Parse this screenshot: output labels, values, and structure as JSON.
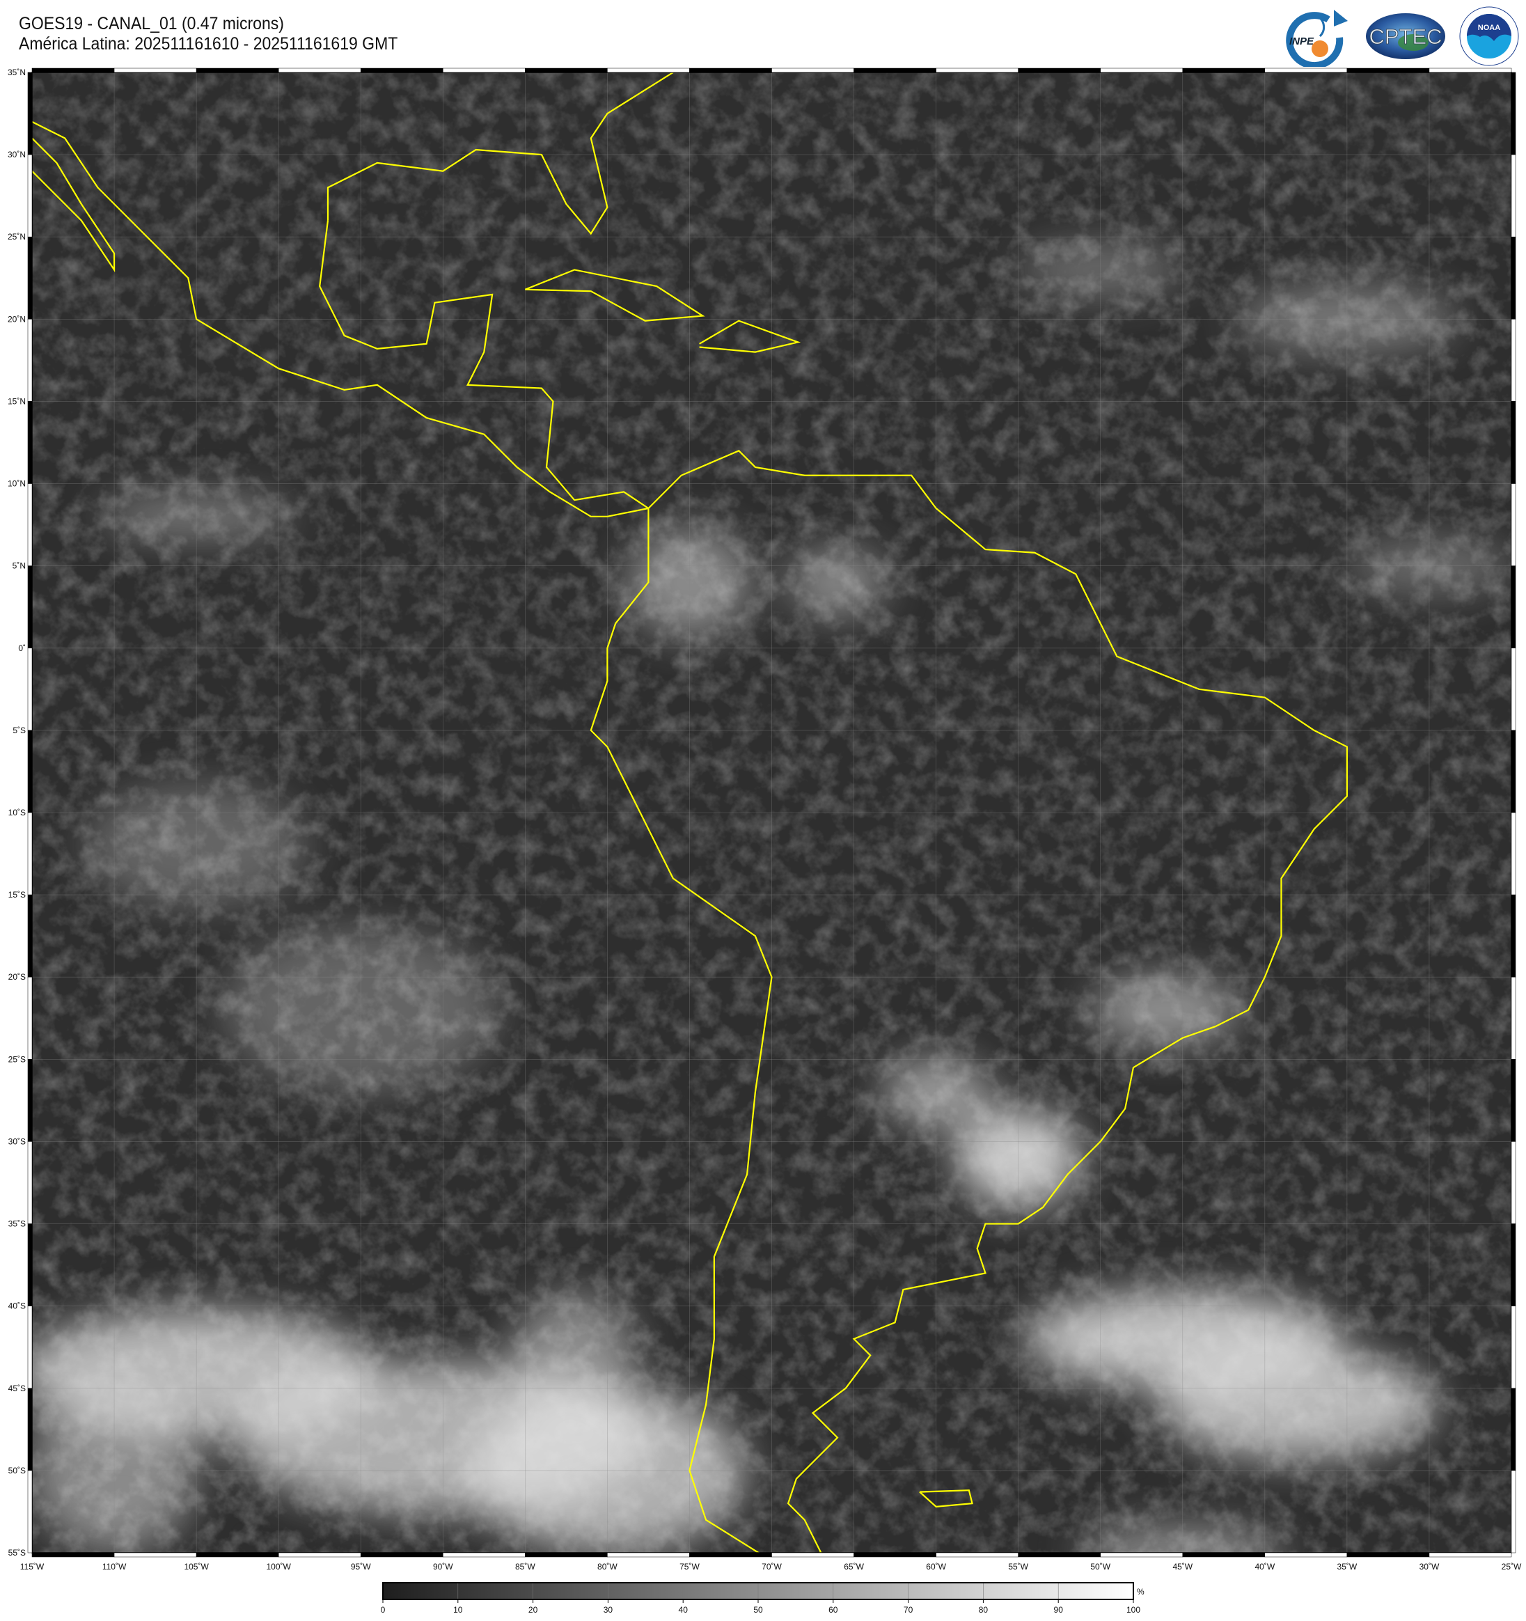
{
  "header": {
    "title": "GOES19 - CANAL_01 (0.47 microns)",
    "subtitle": "América Latina: 202511161610 - 202511161619 GMT"
  },
  "logos": [
    {
      "name": "INPE",
      "colors": [
        "#1f6fb0",
        "#f08a30"
      ]
    },
    {
      "name": "CPTEC",
      "colors": [
        "#2a5aa0",
        "#3a8a3a"
      ]
    },
    {
      "name": "NOAA",
      "ring_text": "NATIONAL OCEANIC AND ATMOSPHERIC ADMINISTRATION · U.S. DEPARTMENT OF COMMERCE",
      "colors": [
        "#1d3f8f",
        "#1aa3df"
      ]
    }
  ],
  "map": {
    "region": "América Latina",
    "lon_range": [
      -115,
      -25
    ],
    "lat_range": [
      -55,
      35
    ],
    "grid_step_deg": 5,
    "coastline_color": "#ffff00",
    "lon_labels": [
      "115˚W",
      "110˚W",
      "105˚W",
      "100˚W",
      "95˚W",
      "90˚W",
      "85˚W",
      "80˚W",
      "75˚W",
      "70˚W",
      "65˚W",
      "60˚W",
      "55˚W",
      "50˚W",
      "45˚W",
      "40˚W",
      "35˚W",
      "30˚W",
      "25˚W"
    ],
    "lat_labels": [
      "35˚N",
      "30˚N",
      "25˚N",
      "20˚N",
      "15˚N",
      "10˚N",
      "5˚N",
      "0˚",
      "5˚S",
      "10˚S",
      "15˚S",
      "20˚S",
      "25˚S",
      "30˚S",
      "35˚S",
      "40˚S",
      "45˚S",
      "50˚S",
      "55˚S"
    ]
  },
  "colorbar": {
    "min": 0,
    "max": 100,
    "ticks": [
      "0",
      "10",
      "20",
      "30",
      "40",
      "50",
      "60",
      "70",
      "80",
      "90",
      "100"
    ],
    "unit": "%",
    "color_low": "#1e1e1e",
    "color_high": "#ffffff"
  }
}
